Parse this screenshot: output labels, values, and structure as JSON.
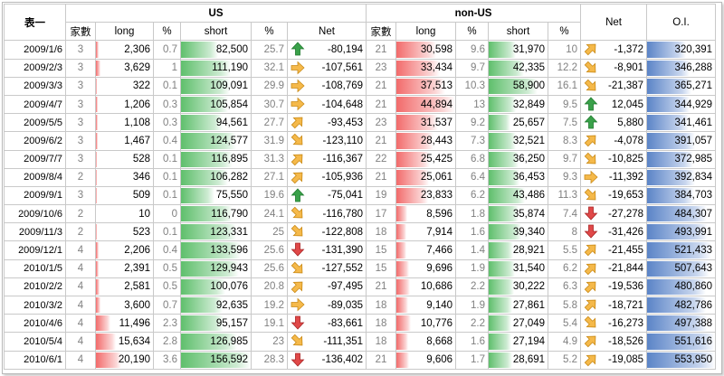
{
  "header": {
    "table_label": "表一",
    "us_label": "US",
    "nonus_label": "non-US",
    "net_label": "Net",
    "oi_label": "O.I.",
    "cols": {
      "houses": "家數",
      "long": "long",
      "pct": "%",
      "short": "short",
      "net": "Net"
    }
  },
  "scale": {
    "long_max": 44894,
    "short_max": 156592,
    "oi_max": 553950
  },
  "rows": [
    {
      "date": "2009/1/6",
      "us_n": "3",
      "us_long": "2,306",
      "us_lp": "0.7",
      "us_short": "82,500",
      "us_sp": "25.7",
      "us_net": "-80,194",
      "us_dir": "up",
      "nu_n": "21",
      "nu_long": "30,598",
      "nu_lp": "9.6",
      "nu_short": "31,970",
      "nu_sp": "10",
      "nu_dir": "ne",
      "nu_net": "-1,372",
      "oi": "320,391"
    },
    {
      "date": "2009/2/3",
      "us_n": "3",
      "us_long": "3,629",
      "us_lp": "1",
      "us_short": "111,190",
      "us_sp": "32.1",
      "us_net": "-107,561",
      "us_dir": "right",
      "nu_n": "23",
      "nu_long": "33,434",
      "nu_lp": "9.7",
      "nu_short": "42,335",
      "nu_sp": "12.2",
      "nu_dir": "se",
      "nu_net": "-8,901",
      "oi": "346,288"
    },
    {
      "date": "2009/3/3",
      "us_n": "3",
      "us_long": "322",
      "us_lp": "0.1",
      "us_short": "109,091",
      "us_sp": "29.9",
      "us_net": "-108,769",
      "us_dir": "right",
      "nu_n": "21",
      "nu_long": "37,513",
      "nu_lp": "10.3",
      "nu_short": "58,900",
      "nu_sp": "16.1",
      "nu_dir": "se",
      "nu_net": "-21,387",
      "oi": "365,271"
    },
    {
      "date": "2009/4/7",
      "us_n": "3",
      "us_long": "1,206",
      "us_lp": "0.3",
      "us_short": "105,854",
      "us_sp": "30.7",
      "us_net": "-104,648",
      "us_dir": "right",
      "nu_n": "21",
      "nu_long": "44,894",
      "nu_lp": "13",
      "nu_short": "32,849",
      "nu_sp": "9.5",
      "nu_dir": "up",
      "nu_net": "12,045",
      "oi": "344,929"
    },
    {
      "date": "2009/5/5",
      "us_n": "3",
      "us_long": "1,108",
      "us_lp": "0.3",
      "us_short": "94,561",
      "us_sp": "27.7",
      "us_net": "-93,453",
      "us_dir": "ne",
      "nu_n": "23",
      "nu_long": "31,537",
      "nu_lp": "9.2",
      "nu_short": "25,657",
      "nu_sp": "7.5",
      "nu_dir": "up",
      "nu_net": "5,880",
      "oi": "341,461"
    },
    {
      "date": "2009/6/2",
      "us_n": "3",
      "us_long": "1,467",
      "us_lp": "0.4",
      "us_short": "124,577",
      "us_sp": "31.9",
      "us_net": "-123,110",
      "us_dir": "se",
      "nu_n": "21",
      "nu_long": "28,443",
      "nu_lp": "7.3",
      "nu_short": "32,521",
      "nu_sp": "8.3",
      "nu_dir": "ne",
      "nu_net": "-4,078",
      "oi": "391,057"
    },
    {
      "date": "2009/7/7",
      "us_n": "3",
      "us_long": "528",
      "us_lp": "0.1",
      "us_short": "116,895",
      "us_sp": "31.3",
      "us_net": "-116,367",
      "us_dir": "ne",
      "nu_n": "22",
      "nu_long": "25,425",
      "nu_lp": "6.8",
      "nu_short": "36,250",
      "nu_sp": "9.7",
      "nu_dir": "se",
      "nu_net": "-10,825",
      "oi": "372,985"
    },
    {
      "date": "2009/8/4",
      "us_n": "2",
      "us_long": "346",
      "us_lp": "0.1",
      "us_short": "106,282",
      "us_sp": "27.1",
      "us_net": "-105,936",
      "us_dir": "ne",
      "nu_n": "21",
      "nu_long": "25,061",
      "nu_lp": "6.4",
      "nu_short": "36,453",
      "nu_sp": "9.3",
      "nu_dir": "right",
      "nu_net": "-11,392",
      "oi": "392,834"
    },
    {
      "date": "2009/9/1",
      "us_n": "3",
      "us_long": "509",
      "us_lp": "0.1",
      "us_short": "75,550",
      "us_sp": "19.6",
      "us_net": "-75,041",
      "us_dir": "up",
      "nu_n": "19",
      "nu_long": "23,833",
      "nu_lp": "6.2",
      "nu_short": "43,486",
      "nu_sp": "11.3",
      "nu_dir": "se",
      "nu_net": "-19,653",
      "oi": "384,703"
    },
    {
      "date": "2009/10/6",
      "us_n": "2",
      "us_long": "10",
      "us_lp": "0",
      "us_short": "116,790",
      "us_sp": "24.1",
      "us_net": "-116,780",
      "us_dir": "se",
      "nu_n": "17",
      "nu_long": "8,596",
      "nu_lp": "1.8",
      "nu_short": "35,874",
      "nu_sp": "7.4",
      "nu_dir": "down",
      "nu_net": "-27,278",
      "oi": "484,307"
    },
    {
      "date": "2009/11/3",
      "us_n": "2",
      "us_long": "523",
      "us_short": "123,331",
      "us_lp": "0.1",
      "us_sp": "25",
      "us_net": "-122,808",
      "us_dir": "se",
      "nu_n": "18",
      "nu_long": "7,914",
      "nu_lp": "1.6",
      "nu_short": "39,340",
      "nu_sp": "8",
      "nu_dir": "down",
      "nu_net": "-31,426",
      "oi": "493,991"
    },
    {
      "date": "2009/12/1",
      "us_n": "4",
      "us_long": "2,206",
      "us_lp": "0.4",
      "us_short": "133,596",
      "us_sp": "25.6",
      "us_net": "-131,390",
      "us_dir": "down",
      "nu_n": "15",
      "nu_long": "7,466",
      "nu_lp": "1.4",
      "nu_short": "28,921",
      "nu_sp": "5.5",
      "nu_dir": "ne",
      "nu_net": "-21,455",
      "oi": "521,433"
    },
    {
      "date": "2010/1/5",
      "us_n": "4",
      "us_long": "2,391",
      "us_lp": "0.5",
      "us_short": "129,943",
      "us_sp": "25.6",
      "us_net": "-127,552",
      "us_dir": "se",
      "nu_n": "15",
      "nu_long": "9,696",
      "nu_lp": "1.9",
      "nu_short": "31,540",
      "nu_sp": "6.2",
      "nu_dir": "ne",
      "nu_net": "-21,844",
      "oi": "507,643"
    },
    {
      "date": "2010/2/2",
      "us_n": "4",
      "us_long": "2,581",
      "us_lp": "0.5",
      "us_short": "100,076",
      "us_sp": "20.8",
      "us_net": "-97,495",
      "us_dir": "ne",
      "nu_n": "21",
      "nu_long": "10,686",
      "nu_lp": "2.2",
      "nu_short": "30,222",
      "nu_sp": "6.3",
      "nu_dir": "ne",
      "nu_net": "-19,536",
      "oi": "480,860"
    },
    {
      "date": "2010/3/2",
      "us_n": "4",
      "us_long": "3,600",
      "us_lp": "0.7",
      "us_short": "92,635",
      "us_sp": "19.2",
      "us_net": "-89,035",
      "us_dir": "right",
      "nu_n": "18",
      "nu_long": "9,140",
      "nu_lp": "1.9",
      "nu_short": "27,861",
      "nu_sp": "5.8",
      "nu_dir": "ne",
      "nu_net": "-18,721",
      "oi": "482,786"
    },
    {
      "date": "2010/4/6",
      "us_n": "4",
      "us_long": "11,496",
      "us_lp": "2.3",
      "us_short": "95,157",
      "us_sp": "19.1",
      "us_net": "-83,661",
      "us_dir": "down",
      "nu_n": "18",
      "nu_long": "10,776",
      "nu_lp": "2.2",
      "nu_short": "27,049",
      "nu_sp": "5.4",
      "nu_dir": "se",
      "nu_net": "-16,273",
      "oi": "497,388"
    },
    {
      "date": "2010/5/4",
      "us_n": "4",
      "us_long": "15,634",
      "us_lp": "2.8",
      "us_short": "126,985",
      "us_sp": "23",
      "us_net": "-111,351",
      "us_dir": "se",
      "nu_n": "18",
      "nu_long": "8,668",
      "nu_lp": "1.6",
      "nu_short": "27,194",
      "nu_sp": "4.9",
      "nu_dir": "ne",
      "nu_net": "-18,526",
      "oi": "551,616"
    },
    {
      "date": "2010/6/1",
      "us_n": "4",
      "us_long": "20,190",
      "us_lp": "3.6",
      "us_short": "156,592",
      "us_sp": "28.3",
      "us_net": "-136,402",
      "us_dir": "down",
      "nu_n": "21",
      "nu_long": "9,606",
      "nu_lp": "1.7",
      "nu_short": "28,691",
      "nu_sp": "5.2",
      "nu_dir": "ne",
      "nu_net": "-19,085",
      "oi": "553,950"
    }
  ]
}
